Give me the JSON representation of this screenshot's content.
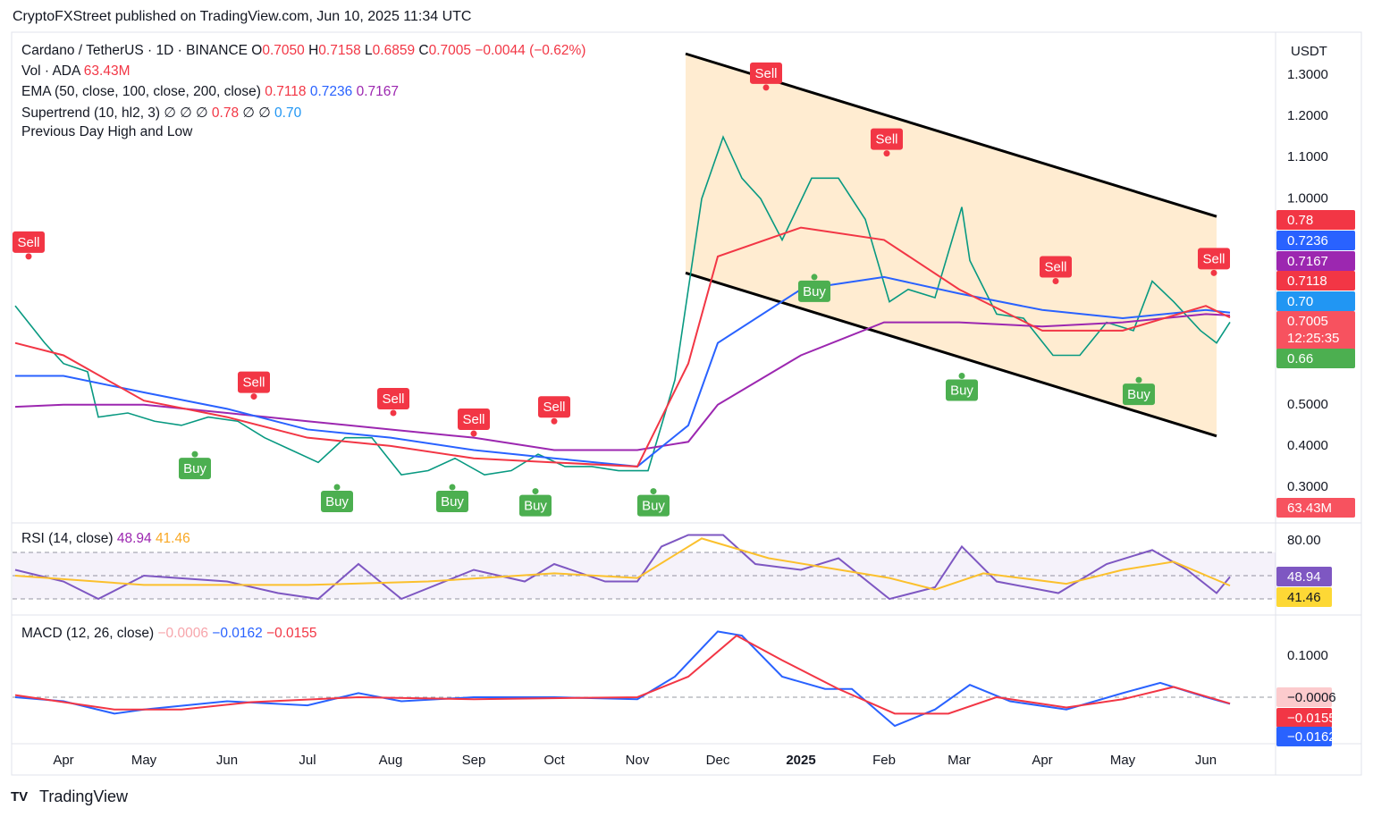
{
  "publisher": "CryptoFXStreet published on TradingView.com, Jun 10, 2025 11:34 UTC",
  "brand": "TradingView",
  "legend": {
    "symbol": "Cardano / TetherUS · 1D · BINANCE",
    "ohlc": [
      {
        "k": "O",
        "v": "0.7050"
      },
      {
        "k": "H",
        "v": "0.7158"
      },
      {
        "k": "L",
        "v": "0.6859"
      },
      {
        "k": "C",
        "v": "0.7005"
      }
    ],
    "change": "−0.0044 (−0.62%)",
    "vol_name": "Vol · ADA",
    "vol": "63.43M",
    "ema_name": "EMA (50, close, 100, close, 200, close)",
    "ema_values": [
      "0.7118",
      "0.7236",
      "0.7167"
    ],
    "st_name": "Supertrend (10, hl2, 3)",
    "st_values": [
      "∅",
      "∅",
      "∅",
      "0.78",
      "∅",
      "∅",
      "0.70"
    ],
    "pdhl": "Previous Day High and Low",
    "rsi_name": "RSI (14, close)",
    "rsi_values": [
      "48.94",
      "41.46"
    ],
    "macd_name": "MACD (12, 26, close)",
    "macd_values": [
      "−0.0006",
      "−0.0162",
      "−0.0155"
    ]
  },
  "currency": "USDT",
  "countdown": "12:25:35",
  "badges": [
    {
      "text": "0.78",
      "color": "#f23645"
    },
    {
      "text": "0.7236",
      "color": "#2962ff"
    },
    {
      "text": "0.7167",
      "color": "#9c27b0"
    },
    {
      "text": "0.7118",
      "color": "#f23645"
    },
    {
      "text": "0.70",
      "color": "#2196f3"
    },
    {
      "text": "0.7005",
      "color": "#f7525f"
    },
    {
      "text": "0.66",
      "color": "#4caf50"
    },
    {
      "text": "63.43M",
      "color": "#f7525f"
    },
    {
      "text": "48.94",
      "color": "#7e57c2"
    },
    {
      "text": "41.46",
      "color": "#fdd835"
    },
    {
      "text": "−0.0006",
      "color": "#fccbcd"
    },
    {
      "text": "−0.0155",
      "color": "#f23645"
    },
    {
      "text": "−0.0162",
      "color": "#2962ff"
    }
  ],
  "chart_data": [
    {
      "type": "line",
      "xlim": [
        "2024-03-13",
        "2025-06-27"
      ],
      "ylim": [
        0.224,
        1.4
      ],
      "yticks": [
        {
          "value": 1.3,
          "label": "1.3000"
        },
        {
          "value": 1.2,
          "label": "1.2000"
        },
        {
          "value": 1.1,
          "label": "1.1000"
        },
        {
          "value": 1.0,
          "label": "1.0000"
        },
        {
          "value": 0.5,
          "label": "0.5000"
        },
        {
          "value": 0.4,
          "label": "0.4000"
        },
        {
          "value": 0.3,
          "label": "0.3000"
        }
      ],
      "series": [
        {
          "color": "#089981",
          "x": [
            "2024-03-14",
            "2024-03-25",
            "2024-04-01",
            "2024-04-10",
            "2024-04-14",
            "2024-04-25",
            "2024-05-05",
            "2024-05-15",
            "2024-05-25",
            "2024-06-05",
            "2024-06-15",
            "2024-06-25",
            "2024-07-05",
            "2024-07-15",
            "2024-07-25",
            "2024-08-05",
            "2024-08-15",
            "2024-08-25",
            "2024-09-05",
            "2024-09-15",
            "2024-09-25",
            "2024-10-05",
            "2024-10-15",
            "2024-10-25",
            "2024-11-05",
            "2024-11-10",
            "2024-11-15",
            "2024-11-20",
            "2024-11-25",
            "2024-12-03",
            "2024-12-10",
            "2024-12-17",
            "2024-12-25",
            "2025-01-05",
            "2025-01-15",
            "2025-01-25",
            "2025-02-03",
            "2025-02-10",
            "2025-02-20",
            "2025-03-02",
            "2025-03-05",
            "2025-03-15",
            "2025-03-25",
            "2025-04-05",
            "2025-04-15",
            "2025-04-25",
            "2025-05-05",
            "2025-05-12",
            "2025-05-20",
            "2025-05-30",
            "2025-06-05",
            "2025-06-10"
          ],
          "values": [
            0.74,
            0.65,
            0.6,
            0.58,
            0.47,
            0.48,
            0.46,
            0.45,
            0.47,
            0.46,
            0.42,
            0.39,
            0.36,
            0.42,
            0.42,
            0.33,
            0.34,
            0.37,
            0.33,
            0.34,
            0.38,
            0.35,
            0.35,
            0.34,
            0.34,
            0.45,
            0.56,
            0.78,
            1.0,
            1.15,
            1.05,
            1.0,
            0.9,
            1.05,
            1.05,
            0.95,
            0.75,
            0.78,
            0.76,
            0.98,
            0.85,
            0.72,
            0.71,
            0.62,
            0.62,
            0.7,
            0.68,
            0.8,
            0.75,
            0.68,
            0.65,
            0.7005
          ]
        },
        {
          "color": "#9c27b0",
          "x": [
            "2024-03-14",
            "2024-04-01",
            "2024-05-01",
            "2024-06-01",
            "2024-07-01",
            "2024-08-01",
            "2024-09-01",
            "2024-10-01",
            "2024-11-01",
            "2024-11-20",
            "2024-12-01",
            "2025-01-01",
            "2025-02-01",
            "2025-03-01",
            "2025-04-01",
            "2025-05-01",
            "2025-06-01",
            "2025-06-10"
          ],
          "values": [
            0.495,
            0.5,
            0.5,
            0.48,
            0.46,
            0.44,
            0.42,
            0.39,
            0.39,
            0.41,
            0.5,
            0.62,
            0.7,
            0.7,
            0.69,
            0.7,
            0.72,
            0.7167
          ]
        },
        {
          "color": "#2962ff",
          "x": [
            "2024-03-14",
            "2024-04-01",
            "2024-05-01",
            "2024-06-01",
            "2024-07-01",
            "2024-08-01",
            "2024-09-01",
            "2024-10-01",
            "2024-11-01",
            "2024-11-20",
            "2024-12-01",
            "2025-01-01",
            "2025-02-01",
            "2025-03-01",
            "2025-04-01",
            "2025-05-01",
            "2025-06-01",
            "2025-06-10"
          ],
          "values": [
            0.57,
            0.57,
            0.53,
            0.49,
            0.44,
            0.42,
            0.39,
            0.37,
            0.35,
            0.45,
            0.65,
            0.78,
            0.81,
            0.77,
            0.73,
            0.71,
            0.73,
            0.7236
          ]
        },
        {
          "color": "#f23645",
          "x": [
            "2024-03-14",
            "2024-04-01",
            "2024-05-01",
            "2024-06-01",
            "2024-07-01",
            "2024-08-01",
            "2024-09-01",
            "2024-10-01",
            "2024-11-01",
            "2024-11-20",
            "2024-12-01",
            "2025-01-01",
            "2025-02-01",
            "2025-03-01",
            "2025-04-01",
            "2025-05-01",
            "2025-06-01",
            "2025-06-10"
          ],
          "values": [
            0.65,
            0.62,
            0.51,
            0.47,
            0.42,
            0.4,
            0.37,
            0.36,
            0.35,
            0.6,
            0.86,
            0.93,
            0.9,
            0.78,
            0.68,
            0.68,
            0.74,
            0.7118
          ]
        }
      ],
      "channel": [
        {
          "x": [
            "2024-11-19",
            "2025-06-05"
          ],
          "y": [
            1.352,
            0.957
          ]
        },
        {
          "x": [
            "2024-11-19",
            "2025-06-05"
          ],
          "y": [
            0.82,
            0.424
          ]
        }
      ],
      "signals": [
        {
          "label": "Sell",
          "x": "2024-03-19",
          "y": 0.86
        },
        {
          "label": "Sell",
          "x": "2024-06-11",
          "y": 0.52
        },
        {
          "label": "Sell",
          "x": "2024-08-02",
          "y": 0.48
        },
        {
          "label": "Sell",
          "x": "2024-09-01",
          "y": 0.43
        },
        {
          "label": "Sell",
          "x": "2024-10-01",
          "y": 0.46
        },
        {
          "label": "Sell",
          "x": "2024-12-19",
          "y": 1.27
        },
        {
          "label": "Sell",
          "x": "2025-02-02",
          "y": 1.11
        },
        {
          "label": "Sell",
          "x": "2025-04-06",
          "y": 0.8
        },
        {
          "label": "Sell",
          "x": "2025-06-04",
          "y": 0.82
        },
        {
          "label": "Buy",
          "x": "2024-05-20",
          "y": 0.38
        },
        {
          "label": "Buy",
          "x": "2024-07-12",
          "y": 0.3
        },
        {
          "label": "Buy",
          "x": "2024-08-24",
          "y": 0.3
        },
        {
          "label": "Buy",
          "x": "2024-09-24",
          "y": 0.29
        },
        {
          "label": "Buy",
          "x": "2024-11-07",
          "y": 0.29
        },
        {
          "label": "Buy",
          "x": "2025-01-06",
          "y": 0.81
        },
        {
          "label": "Buy",
          "x": "2025-03-02",
          "y": 0.57
        },
        {
          "label": "Buy",
          "x": "2025-05-07",
          "y": 0.56
        }
      ]
    },
    {
      "type": "line",
      "xlim": [
        "2024-03-13",
        "2025-06-27"
      ],
      "ylim": [
        18.5,
        91.5
      ],
      "yticks": [
        {
          "value": 80,
          "label": "80.00"
        }
      ],
      "levels": [
        70,
        50,
        30
      ],
      "series": [
        {
          "color": "#7e57c2",
          "x": [
            "2024-03-14",
            "2024-04-01",
            "2024-04-14",
            "2024-05-01",
            "2024-06-01",
            "2024-06-20",
            "2024-07-05",
            "2024-07-20",
            "2024-08-05",
            "2024-09-01",
            "2024-09-20",
            "2024-10-01",
            "2024-10-20",
            "2024-11-01",
            "2024-11-10",
            "2024-11-20",
            "2024-12-03",
            "2024-12-15",
            "2025-01-01",
            "2025-01-15",
            "2025-02-03",
            "2025-02-20",
            "2025-03-02",
            "2025-03-15",
            "2025-04-07",
            "2025-04-25",
            "2025-05-12",
            "2025-05-25",
            "2025-06-05",
            "2025-06-10"
          ],
          "values": [
            55,
            45,
            30,
            50,
            45,
            35,
            30,
            60,
            30,
            55,
            45,
            60,
            45,
            45,
            75,
            85,
            85,
            60,
            55,
            65,
            30,
            40,
            75,
            45,
            35,
            60,
            72,
            55,
            35,
            48.94
          ]
        },
        {
          "color": "#fbc02d",
          "x": [
            "2024-03-14",
            "2024-05-01",
            "2024-07-01",
            "2024-08-15",
            "2024-10-01",
            "2024-11-01",
            "2024-11-25",
            "2024-12-20",
            "2025-02-03",
            "2025-02-20",
            "2025-03-10",
            "2025-04-10",
            "2025-05-01",
            "2025-05-20",
            "2025-06-10"
          ],
          "values": [
            50,
            42,
            42,
            45,
            52,
            48,
            82,
            65,
            48,
            38,
            52,
            43,
            55,
            62,
            41.46
          ]
        }
      ]
    },
    {
      "type": "line",
      "xlim": [
        "2024-03-13",
        "2025-06-27"
      ],
      "ylim": [
        -0.109,
        0.185
      ],
      "yticks": [
        {
          "value": 0.1,
          "label": "0.1000"
        }
      ],
      "levels": [
        0
      ],
      "xticks": [
        {
          "value": "2024-04-01",
          "label": "Apr"
        },
        {
          "value": "2024-05-01",
          "label": "May"
        },
        {
          "value": "2024-06-01",
          "label": "Jun"
        },
        {
          "value": "2024-07-01",
          "label": "Jul"
        },
        {
          "value": "2024-08-01",
          "label": "Aug"
        },
        {
          "value": "2024-09-01",
          "label": "Sep"
        },
        {
          "value": "2024-10-01",
          "label": "Oct"
        },
        {
          "value": "2024-11-01",
          "label": "Nov"
        },
        {
          "value": "2024-12-01",
          "label": "Dec"
        },
        {
          "value": "2025-01-01",
          "label": "2025"
        },
        {
          "value": "2025-02-01",
          "label": "Feb"
        },
        {
          "value": "2025-03-01",
          "label": "Mar"
        },
        {
          "value": "2025-04-01",
          "label": "Apr"
        },
        {
          "value": "2025-05-01",
          "label": "May"
        },
        {
          "value": "2025-06-01",
          "label": "Jun"
        }
      ],
      "series": [
        {
          "color": "#2962ff",
          "x": [
            "2024-03-14",
            "2024-04-01",
            "2024-04-20",
            "2024-05-01",
            "2024-06-01",
            "2024-07-01",
            "2024-07-20",
            "2024-08-05",
            "2024-09-01",
            "2024-10-01",
            "2024-11-01",
            "2024-11-15",
            "2024-12-01",
            "2024-12-10",
            "2024-12-25",
            "2025-01-10",
            "2025-01-20",
            "2025-02-05",
            "2025-02-20",
            "2025-03-05",
            "2025-03-20",
            "2025-04-10",
            "2025-05-01",
            "2025-05-15",
            "2025-06-01",
            "2025-06-10"
          ],
          "values": [
            0.0,
            -0.01,
            -0.04,
            -0.03,
            -0.01,
            -0.02,
            0.01,
            -0.01,
            0.0,
            0.0,
            -0.005,
            0.05,
            0.16,
            0.15,
            0.05,
            0.02,
            0.02,
            -0.07,
            -0.03,
            0.03,
            -0.01,
            -0.03,
            0.01,
            0.035,
            0.0,
            -0.0162
          ]
        },
        {
          "color": "#f23645",
          "x": [
            "2024-03-14",
            "2024-04-20",
            "2024-05-15",
            "2024-06-10",
            "2024-07-20",
            "2024-09-01",
            "2024-11-01",
            "2024-11-20",
            "2024-12-08",
            "2024-12-25",
            "2025-01-15",
            "2025-02-05",
            "2025-02-25",
            "2025-03-15",
            "2025-04-10",
            "2025-05-01",
            "2025-05-20",
            "2025-06-10"
          ],
          "values": [
            0.005,
            -0.03,
            -0.03,
            -0.012,
            0.0,
            -0.005,
            0.0,
            0.05,
            0.15,
            0.09,
            0.02,
            -0.04,
            -0.04,
            0.0,
            -0.025,
            -0.005,
            0.025,
            -0.0155
          ]
        }
      ]
    }
  ]
}
